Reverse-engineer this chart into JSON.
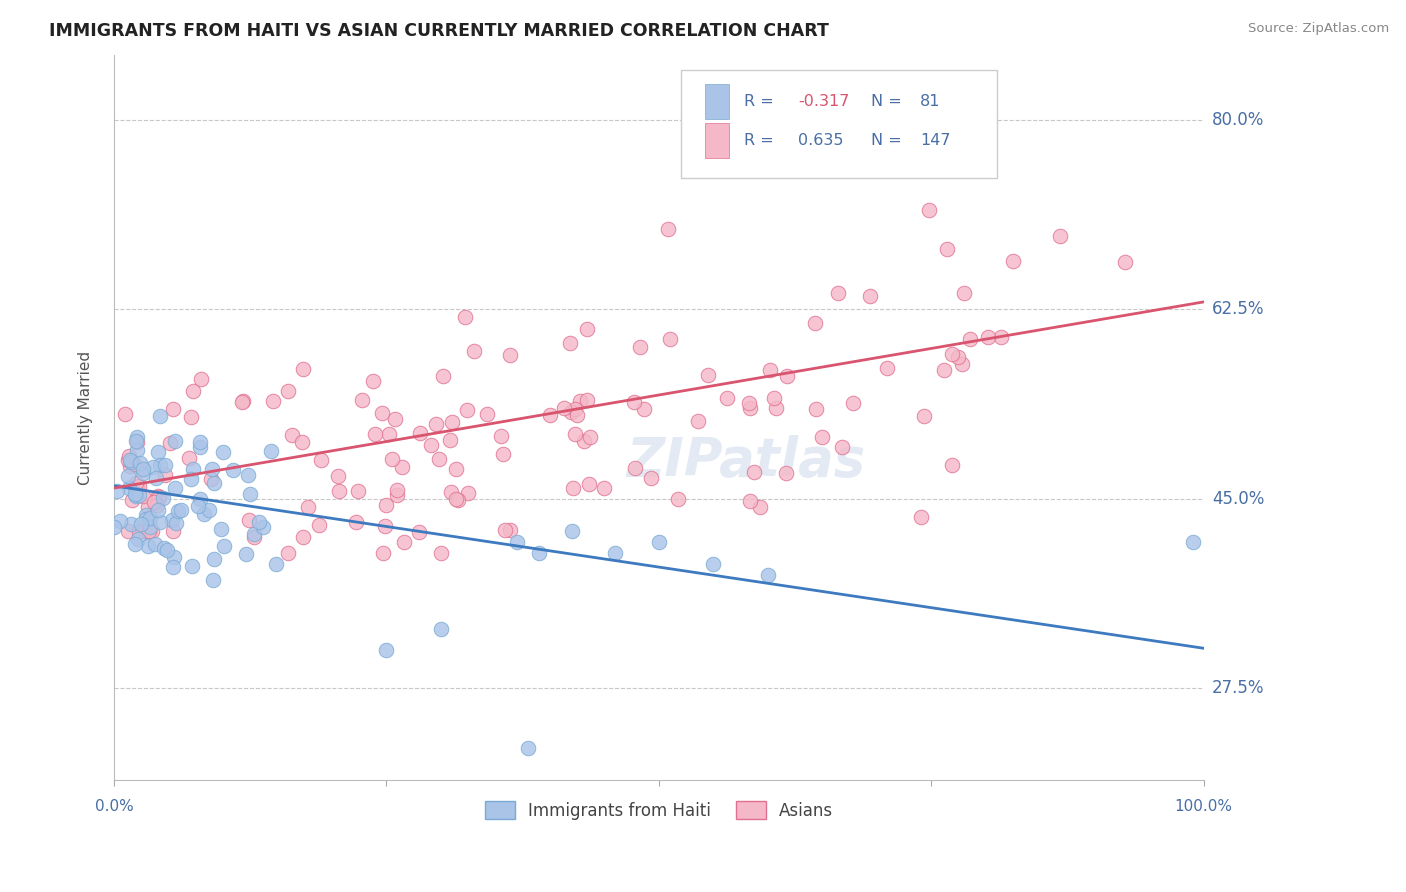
{
  "title": "IMMIGRANTS FROM HAITI VS ASIAN CURRENTLY MARRIED CORRELATION CHART",
  "source": "Source: ZipAtlas.com",
  "ylabel": "Currently Married",
  "y_ticks": [
    0.275,
    0.45,
    0.625,
    0.8
  ],
  "y_tick_labels": [
    "27.5%",
    "45.0%",
    "62.5%",
    "80.0%"
  ],
  "xlim": [
    0.0,
    1.0
  ],
  "ylim": [
    0.19,
    0.86
  ],
  "haiti_R": -0.317,
  "haiti_N": 81,
  "asia_R": 0.635,
  "asia_N": 147,
  "legend_label_haiti": "Immigrants from Haiti",
  "legend_label_asia": "Asians",
  "watermark": "ZIPatlas",
  "background_color": "#ffffff",
  "grid_color": "#c8c8c8",
  "title_color": "#222222",
  "axis_label_color": "#4a6fa5",
  "haiti_line_color": "#3d7abf",
  "asia_line_color": "#d9546e",
  "haiti_scatter_color": "#aac4e8",
  "asia_scatter_color": "#f4b8c8",
  "haiti_scatter_edge": "#7aaad4",
  "asia_scatter_edge": "#e07090",
  "haiti_line_y0": 0.462,
  "haiti_line_y1": 0.312,
  "asia_line_y0": 0.46,
  "asia_line_y1": 0.632
}
